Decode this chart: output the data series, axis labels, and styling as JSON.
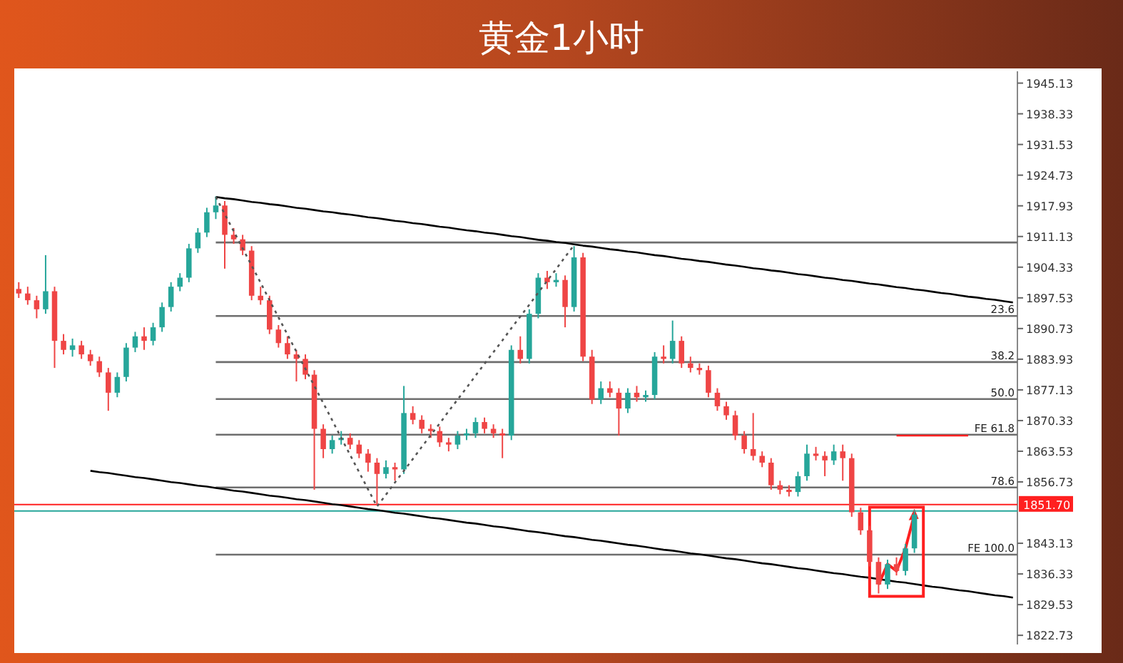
{
  "chart_data": {
    "type": "candlestick",
    "title": "黄金1小时",
    "categories": [
      null,
      null,
      null,
      null,
      null,
      null,
      null,
      null,
      null,
      null,
      null,
      null,
      null,
      null,
      null,
      null,
      null,
      null,
      null,
      null,
      null,
      null,
      null,
      null,
      null,
      null,
      null,
      null,
      null,
      null,
      null,
      null,
      null,
      null,
      null,
      null,
      null,
      null,
      null,
      null,
      null,
      null,
      null,
      null,
      null,
      null,
      null,
      null,
      null,
      null,
      null,
      null,
      null,
      null,
      null,
      null,
      null,
      null,
      null,
      null,
      null,
      null,
      null,
      null,
      null,
      null,
      null,
      null,
      null,
      null,
      null,
      null,
      null,
      null,
      null,
      null,
      null,
      null,
      null,
      null,
      null,
      null,
      null,
      null,
      null,
      null,
      null,
      null,
      null,
      null,
      null,
      null,
      null,
      null,
      null,
      null,
      null,
      null,
      null,
      null,
      null,
      null,
      null,
      null,
      null,
      null,
      null,
      null,
      null,
      null,
      null,
      null
    ],
    "ohlc": [
      [
        1899.5,
        1901,
        1897.5,
        1898.5
      ],
      [
        1898.5,
        1900,
        1896,
        1897
      ],
      [
        1897,
        1898,
        1893,
        1895
      ],
      [
        1895,
        1907,
        1894,
        1899
      ],
      [
        1899,
        1900,
        1882,
        1888
      ],
      [
        1888,
        1889.5,
        1885,
        1886
      ],
      [
        1886,
        1888.5,
        1884.5,
        1887
      ],
      [
        1887,
        1888,
        1884,
        1885
      ],
      [
        1885,
        1886,
        1882.5,
        1883.5
      ],
      [
        1883.5,
        1884.5,
        1880,
        1881
      ],
      [
        1881,
        1882,
        1872.5,
        1876.5
      ],
      [
        1876.5,
        1881,
        1875.5,
        1880
      ],
      [
        1880,
        1887.5,
        1879,
        1886.5
      ],
      [
        1886.5,
        1890,
        1885.5,
        1889
      ],
      [
        1889,
        1891,
        1886,
        1888
      ],
      [
        1888,
        1892,
        1887,
        1891
      ],
      [
        1891,
        1896.5,
        1890,
        1895.5
      ],
      [
        1895.5,
        1901,
        1894.5,
        1900
      ],
      [
        1900,
        1903,
        1899,
        1902
      ],
      [
        1902,
        1909.5,
        1901,
        1908.5
      ],
      [
        1908.5,
        1913,
        1907.5,
        1912
      ],
      [
        1912,
        1917.5,
        1911,
        1916.5
      ],
      [
        1916.5,
        1920,
        1915,
        1918
      ],
      [
        1918,
        1919,
        1904,
        1911.5
      ],
      [
        1911.5,
        1913,
        1909.5,
        1910.5
      ],
      [
        1910.5,
        1911.5,
        1907,
        1908
      ],
      [
        1908,
        1909,
        1897,
        1898
      ],
      [
        1898,
        1900,
        1896,
        1897
      ],
      [
        1897,
        1898,
        1889.5,
        1890.5
      ],
      [
        1890.5,
        1891.5,
        1886.5,
        1887.5
      ],
      [
        1887.5,
        1889,
        1884,
        1885
      ],
      [
        1885,
        1886,
        1879,
        1884
      ],
      [
        1884,
        1885,
        1879.5,
        1880.5
      ],
      [
        1880.5,
        1881.5,
        1855,
        1868.5
      ],
      [
        1868.5,
        1869.5,
        1862,
        1864
      ],
      [
        1864,
        1867,
        1863,
        1866
      ],
      [
        1866,
        1868,
        1865,
        1866.5
      ],
      [
        1866.5,
        1867.5,
        1864,
        1865
      ],
      [
        1865,
        1866,
        1862,
        1863
      ],
      [
        1863,
        1864,
        1859,
        1861
      ],
      [
        1861,
        1862,
        1851.5,
        1858.5
      ],
      [
        1858.5,
        1861.5,
        1857.5,
        1860
      ],
      [
        1860,
        1861,
        1857,
        1859.5
      ],
      [
        1859.5,
        1878,
        1858.5,
        1872
      ],
      [
        1872,
        1873.5,
        1869.5,
        1870.5
      ],
      [
        1870.5,
        1871.5,
        1867.5,
        1868.5
      ],
      [
        1868.5,
        1869.5,
        1866.5,
        1868
      ],
      [
        1868,
        1869,
        1864.5,
        1865.5
      ],
      [
        1865.5,
        1866.5,
        1863.5,
        1865
      ],
      [
        1865,
        1868,
        1864,
        1867
      ],
      [
        1867,
        1868.5,
        1866,
        1867.5
      ],
      [
        1867.5,
        1871,
        1866.5,
        1870
      ],
      [
        1870,
        1871,
        1867.5,
        1868.5
      ],
      [
        1868.5,
        1869.5,
        1866.5,
        1867.5
      ],
      [
        1867.5,
        1868.5,
        1862,
        1867
      ],
      [
        1867,
        1887,
        1866,
        1886
      ],
      [
        1886,
        1889,
        1883,
        1884
      ],
      [
        1884,
        1895,
        1883,
        1894
      ],
      [
        1894,
        1903,
        1893,
        1902
      ],
      [
        1902,
        1903.5,
        1899.5,
        1901
      ],
      [
        1901,
        1903,
        1900,
        1901.5
      ],
      [
        1901.5,
        1902.5,
        1891,
        1895.5
      ],
      [
        1895.5,
        1909,
        1894.5,
        1906.5
      ],
      [
        1906.5,
        1907.5,
        1883.5,
        1884.5
      ],
      [
        1884.5,
        1886,
        1874,
        1875
      ],
      [
        1875,
        1879,
        1874,
        1877.5
      ],
      [
        1877.5,
        1879,
        1875.5,
        1876.5
      ],
      [
        1876.5,
        1877.5,
        1867,
        1873
      ],
      [
        1873,
        1877.5,
        1872,
        1876.5
      ],
      [
        1876.5,
        1878,
        1874.5,
        1875.5
      ],
      [
        1875.5,
        1877,
        1874.5,
        1876
      ],
      [
        1876,
        1885.5,
        1875,
        1884.5
      ],
      [
        1884.5,
        1887,
        1883,
        1884
      ],
      [
        1884,
        1892.5,
        1883,
        1888
      ],
      [
        1888,
        1889,
        1882,
        1883
      ],
      [
        1883,
        1884.5,
        1881,
        1882
      ],
      [
        1882,
        1883,
        1880.5,
        1881.5
      ],
      [
        1881.5,
        1882.5,
        1875.5,
        1876.5
      ],
      [
        1876.5,
        1877.5,
        1872.5,
        1873.5
      ],
      [
        1873.5,
        1874.5,
        1870.5,
        1871.5
      ],
      [
        1871.5,
        1872.5,
        1866,
        1867
      ],
      [
        1867,
        1868,
        1863,
        1864
      ],
      [
        1864,
        1872,
        1861.5,
        1862.5
      ],
      [
        1862.5,
        1863.5,
        1860,
        1861
      ],
      [
        1861,
        1862,
        1855,
        1856
      ],
      [
        1856,
        1857,
        1854,
        1855
      ],
      [
        1855,
        1856,
        1853.5,
        1854.5
      ],
      [
        1854.5,
        1859,
        1853.5,
        1858
      ],
      [
        1858,
        1865,
        1857,
        1863
      ],
      [
        1863,
        1864.5,
        1861.5,
        1862.5
      ],
      [
        1862.5,
        1863.5,
        1858,
        1861.5
      ],
      [
        1861.5,
        1865,
        1860.5,
        1863.5
      ],
      [
        1863.5,
        1865,
        1857,
        1862
      ],
      [
        1862,
        1863,
        1849,
        1850
      ],
      [
        1850,
        1851,
        1845,
        1846
      ],
      [
        1846,
        1847,
        1838,
        1839
      ],
      [
        1839,
        1840,
        1832,
        1834
      ],
      [
        1834,
        1839.5,
        1833,
        1838.5
      ],
      [
        1838.5,
        1840,
        1836,
        1837
      ],
      [
        1837,
        1843,
        1836,
        1842
      ],
      [
        1842,
        1850.5,
        1841,
        1849.5
      ],
      null,
      null,
      null,
      null,
      null,
      null,
      null,
      null,
      null,
      null,
      null
    ],
    "series": [
      {
        "type": "line",
        "color": "#000000",
        "values": [
          null,
          null,
          null,
          null,
          null,
          null,
          null,
          null,
          null,
          null,
          null,
          null,
          null,
          null,
          null,
          null,
          null,
          null,
          null,
          null,
          null,
          null,
          1919.9,
          1919.6,
          1919.4,
          1919.1,
          1918.8,
          1918.6,
          1918.3,
          1918.1,
          1917.8,
          1917.5,
          1917.3,
          1917.0,
          1916.7,
          1916.5,
          1916.2,
          1916.0,
          1915.7,
          1915.4,
          1915.2,
          1914.9,
          1914.6,
          1914.4,
          1914.1,
          1913.9,
          1913.6,
          1913.3,
          1913.1,
          1912.8,
          1912.5,
          1912.3,
          1912.0,
          1911.8,
          1911.5,
          1911.2,
          1911.0,
          1910.7,
          1910.4,
          1910.2,
          1909.9,
          1909.7,
          1909.4,
          1909.1,
          1908.9,
          1908.6,
          1908.3,
          1908.1,
          1907.8,
          1907.6,
          1907.3,
          1907.0,
          1906.8,
          1906.5,
          1906.2,
          1906.0,
          1905.7,
          1905.5,
          1905.2,
          1904.9,
          1904.7,
          1904.4,
          1904.1,
          1903.9,
          1903.6,
          1903.4,
          1903.1,
          1902.8,
          1902.6,
          1902.3,
          1902.0,
          1901.8,
          1901.5,
          1901.3,
          1901.0,
          1900.7,
          1900.5,
          1900.2,
          1899.9,
          1899.7,
          1899.4,
          1899.2,
          1898.9,
          1898.6,
          1898.4,
          1898.1,
          1897.8,
          1897.6,
          1897.3,
          1897.1,
          1896.8,
          1896.5
        ]
      },
      {
        "type": "line",
        "color": "#000000",
        "values": [
          null,
          null,
          null,
          null,
          null,
          null,
          null,
          null,
          1859.2,
          1858.9,
          1858.7,
          1858.4,
          1858.1,
          1857.8,
          1857.6,
          1857.3,
          1857.0,
          1856.7,
          1856.5,
          1856.2,
          1855.9,
          1855.7,
          1855.4,
          1855.1,
          1854.8,
          1854.6,
          1854.3,
          1854.0,
          1853.7,
          1853.5,
          1853.2,
          1852.9,
          1852.7,
          1852.4,
          1852.1,
          1851.8,
          1851.6,
          1851.3,
          1851.0,
          1850.7,
          1850.5,
          1850.2,
          1849.9,
          1849.7,
          1849.4,
          1849.1,
          1848.8,
          1848.6,
          1848.3,
          1848.0,
          1847.7,
          1847.5,
          1847.2,
          1846.9,
          1846.7,
          1846.4,
          1846.1,
          1845.8,
          1845.6,
          1845.3,
          1845.0,
          1844.7,
          1844.5,
          1844.2,
          1843.9,
          1843.7,
          1843.4,
          1843.1,
          1842.8,
          1842.6,
          1842.3,
          1842.0,
          1841.7,
          1841.5,
          1841.2,
          1840.9,
          1840.7,
          1840.4,
          1840.1,
          1839.8,
          1839.6,
          1839.3,
          1839.0,
          1838.7,
          1838.5,
          1838.2,
          1837.9,
          1837.6,
          1837.4,
          1837.1,
          1836.8,
          1836.5,
          1836.3,
          1836.0,
          1835.7,
          1835.5,
          1835.2,
          1834.9,
          1834.6,
          1834.4,
          1834.1,
          1833.8,
          1833.5,
          1833.3,
          1833.0,
          1832.7,
          1832.5,
          1832.2,
          1831.9,
          1831.6,
          1831.4,
          1831.1
        ]
      },
      {
        "type": "line",
        "color": "#555555",
        "line_style": "dotted",
        "values": [
          null,
          null,
          null,
          null,
          null,
          null,
          null,
          null,
          null,
          null,
          null,
          null,
          null,
          null,
          null,
          null,
          null,
          null,
          null,
          null,
          null,
          null,
          1919.9,
          1916.1,
          1912.3,
          1908.5,
          1904.7,
          1900.9,
          1897.0,
          1893.2,
          1889.4,
          1885.6,
          1881.8,
          1878.0,
          1874.2,
          1870.4,
          1866.5,
          1862.7,
          1858.9,
          1855.1,
          1851.3,
          1853.9,
          1856.6,
          1859.2,
          1861.8,
          1864.5,
          1867.1,
          1869.7,
          1872.4,
          1875.0,
          1877.6,
          1880.3,
          1882.9,
          1885.5,
          1888.1,
          1890.8,
          1893.4,
          1896.0,
          1898.7,
          1901.3,
          1903.9,
          1906.6,
          1909.2,
          null,
          null,
          null,
          null,
          null,
          null,
          null,
          null,
          null,
          null,
          null,
          null,
          null,
          null,
          null,
          null,
          null,
          null,
          null,
          null,
          null,
          null,
          null,
          null,
          null,
          null,
          null,
          null,
          null,
          null,
          null,
          null,
          null,
          null,
          null,
          null,
          null,
          null,
          null,
          null,
          null,
          null,
          null,
          null,
          null,
          null,
          null,
          null,
          null
        ]
      },
      {
        "type": "line",
        "color": "#ff2020",
        "values": [
          null,
          null,
          null,
          null,
          null,
          null,
          null,
          null,
          null,
          null,
          null,
          null,
          null,
          null,
          null,
          null,
          null,
          null,
          null,
          null,
          null,
          null,
          null,
          null,
          null,
          null,
          null,
          null,
          null,
          null,
          null,
          null,
          null,
          null,
          null,
          null,
          null,
          null,
          null,
          null,
          null,
          null,
          null,
          null,
          null,
          null,
          null,
          null,
          null,
          null,
          null,
          null,
          null,
          null,
          null,
          null,
          null,
          null,
          null,
          null,
          null,
          null,
          null,
          null,
          null,
          null,
          null,
          null,
          null,
          null,
          null,
          null,
          null,
          null,
          null,
          null,
          null,
          null,
          null,
          null,
          null,
          null,
          null,
          null,
          null,
          null,
          null,
          null,
          null,
          null,
          null,
          null,
          null,
          null,
          null,
          null,
          null,
          null,
          1867.0,
          1867.0,
          1867.0,
          1867.0,
          1867.0,
          1867.0,
          1867.0,
          1867.0,
          1867.0,
          null,
          null,
          null,
          null,
          null
        ]
      }
    ],
    "ref_lines": [
      {
        "axis": "y",
        "value": 1909.8
      },
      {
        "axis": "y",
        "value": 1893.5
      },
      {
        "axis": "y",
        "value": 1883.3
      },
      {
        "axis": "y",
        "value": 1875.1
      },
      {
        "axis": "y",
        "value": 1867.2
      },
      {
        "axis": "y",
        "value": 1855.5
      },
      {
        "axis": "y",
        "value": 1840.6
      },
      {
        "axis": "y",
        "value": 1851.7,
        "label": "1851.70",
        "color": "#ff2020"
      },
      {
        "axis": "y",
        "value": 1850.3,
        "color": "#26a69a"
      }
    ],
    "annotations": [
      {
        "text": "23.6",
        "y": 1893.5
      },
      {
        "text": "38.2",
        "y": 1883.3
      },
      {
        "text": "50.0",
        "y": 1875.1
      },
      {
        "text": "FE 61.8",
        "y": 1867.2
      },
      {
        "text": "78.6",
        "y": 1855.5
      },
      {
        "text": "FE 100.0",
        "y": 1840.6
      }
    ],
    "ylim": [
      1820.7,
      1947.75
    ],
    "yticks": [
      1945.13,
      1938.33,
      1931.53,
      1924.73,
      1917.93,
      1911.13,
      1904.33,
      1897.53,
      1890.73,
      1883.93,
      1877.13,
      1870.33,
      1863.53,
      1856.73,
      1843.13,
      1836.33,
      1829.53,
      1822.73
    ],
    "tick_labels": "y"
  }
}
